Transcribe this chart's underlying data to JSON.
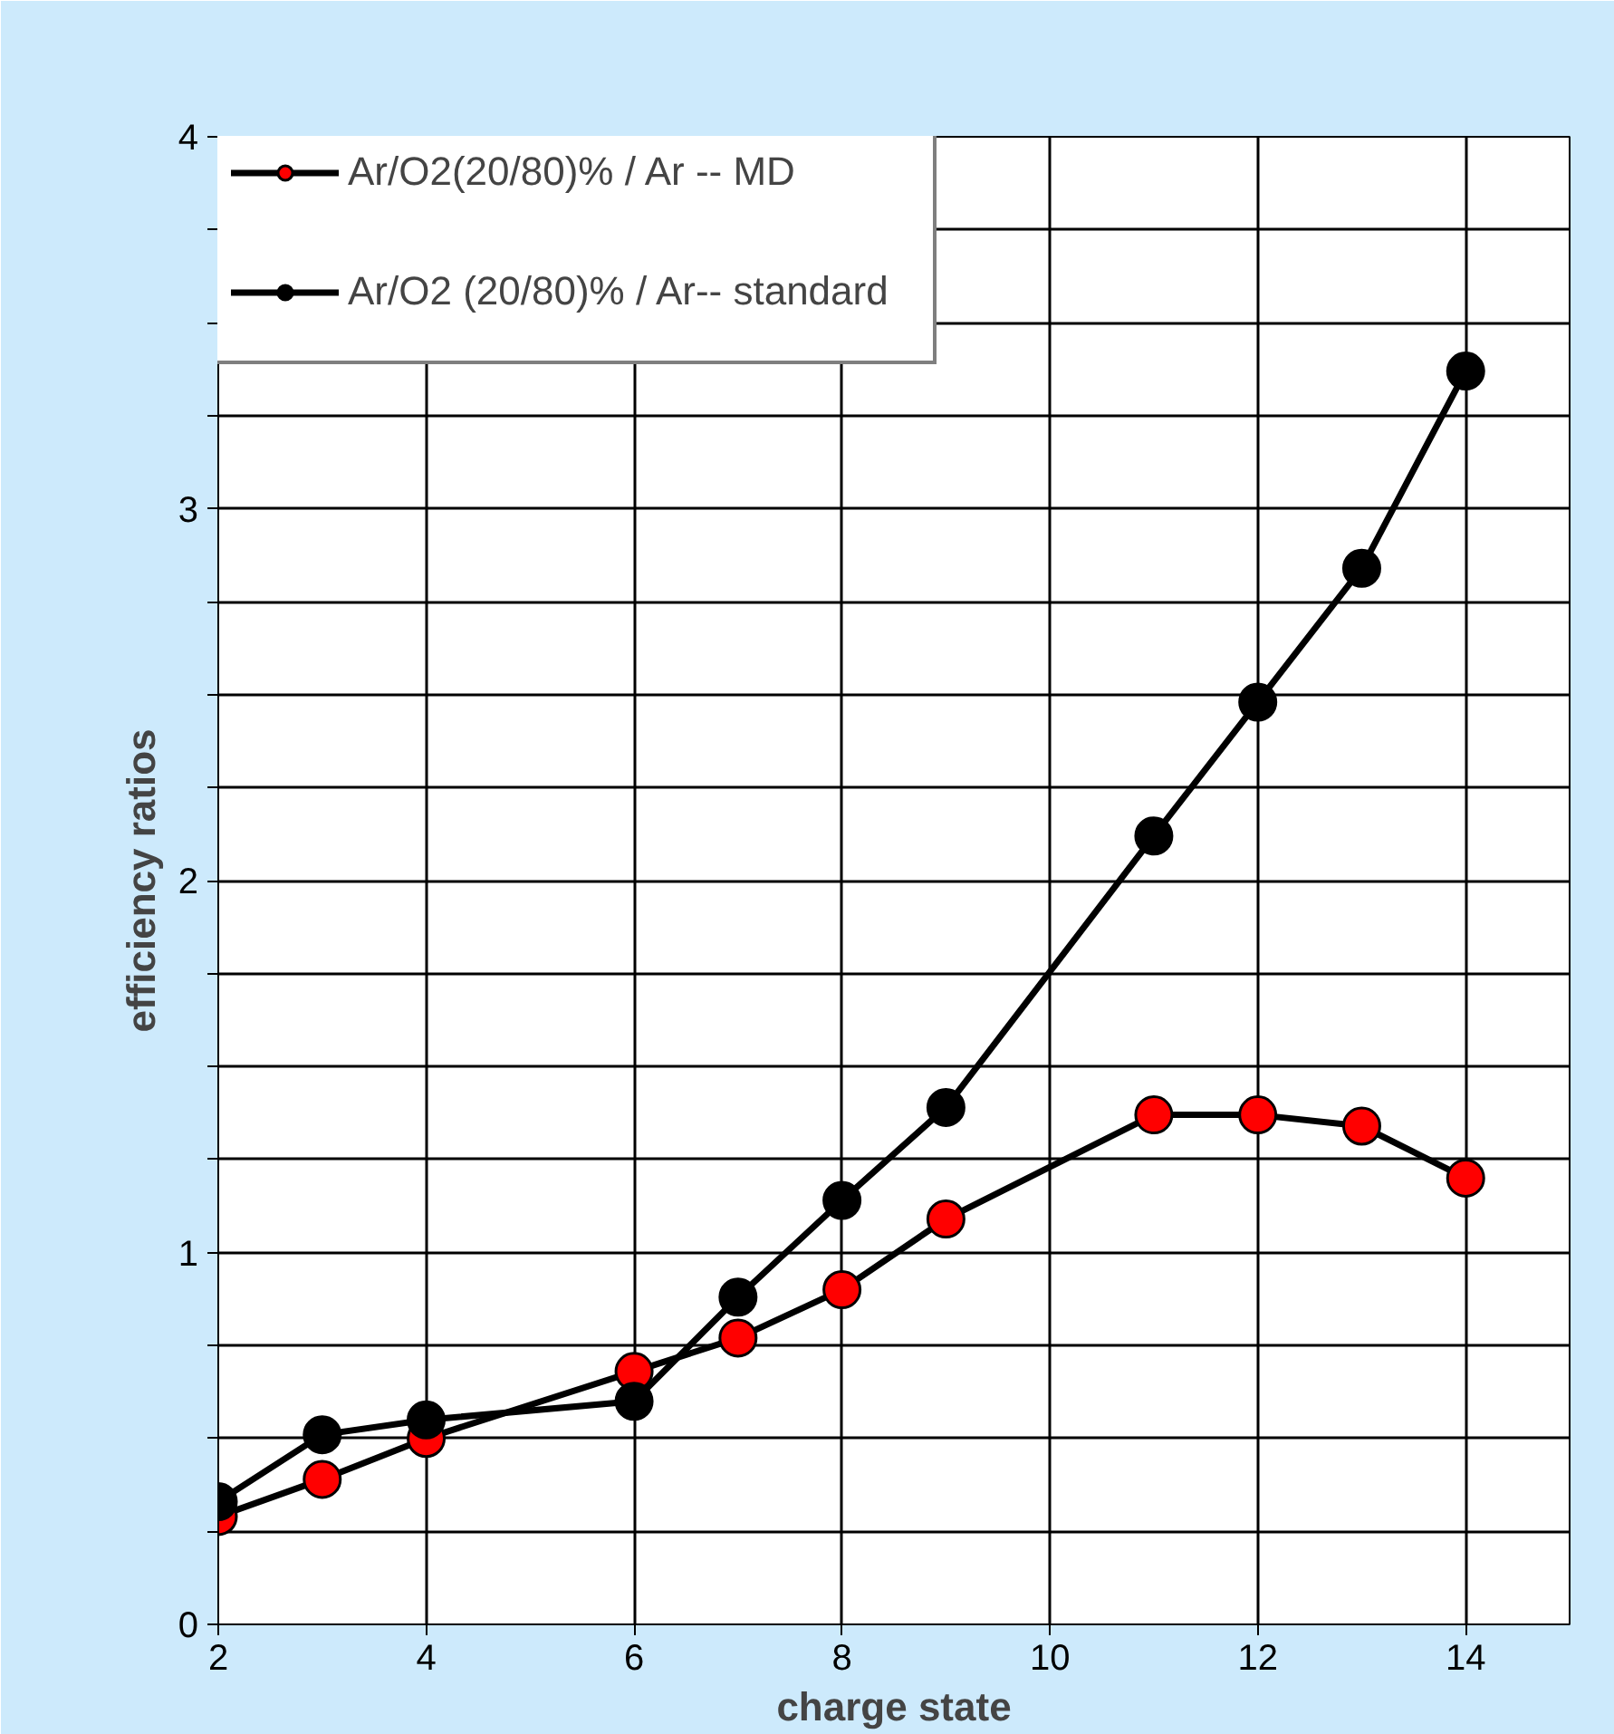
{
  "chart_data": {
    "type": "line",
    "xlabel": "charge state",
    "ylabel": "efficiency ratios",
    "x": [
      2,
      3,
      4,
      6,
      7,
      8,
      9,
      11,
      12,
      13,
      14
    ],
    "series": [
      {
        "name": "Ar/O2(20/80)% / Ar -- MD",
        "color": "#ff0000",
        "values": [
          0.29,
          0.39,
          0.5,
          0.68,
          0.77,
          0.9,
          1.09,
          1.37,
          1.37,
          1.34,
          1.2
        ]
      },
      {
        "name": "Ar/O2 (20/80)% / Ar-- standard",
        "color": "#000000",
        "values": [
          0.33,
          0.51,
          0.55,
          0.6,
          0.88,
          1.14,
          1.39,
          2.12,
          2.48,
          2.84,
          3.37
        ]
      }
    ],
    "xlim": [
      2,
      15
    ],
    "xticks": [
      2,
      4,
      6,
      8,
      10,
      12,
      14
    ],
    "ylim": [
      0,
      4
    ],
    "yticks": [
      0,
      {
        "value": 0.25,
        "label": null
      },
      {
        "value": 0.5,
        "label": null
      },
      {
        "value": 0.75,
        "label": null
      },
      1,
      {
        "value": 1.25,
        "label": null
      },
      {
        "value": 1.5,
        "label": null
      },
      {
        "value": 1.75,
        "label": null
      },
      2,
      {
        "value": 2.25,
        "label": null
      },
      {
        "value": 2.5,
        "label": null
      },
      {
        "value": 2.75,
        "label": null
      },
      3,
      {
        "value": 3.25,
        "label": null
      },
      {
        "value": 3.5,
        "label": null
      },
      {
        "value": 3.75,
        "label": null
      },
      4
    ],
    "grid": true,
    "legend": "top left",
    "marker": "circle",
    "line_style": "solid"
  }
}
